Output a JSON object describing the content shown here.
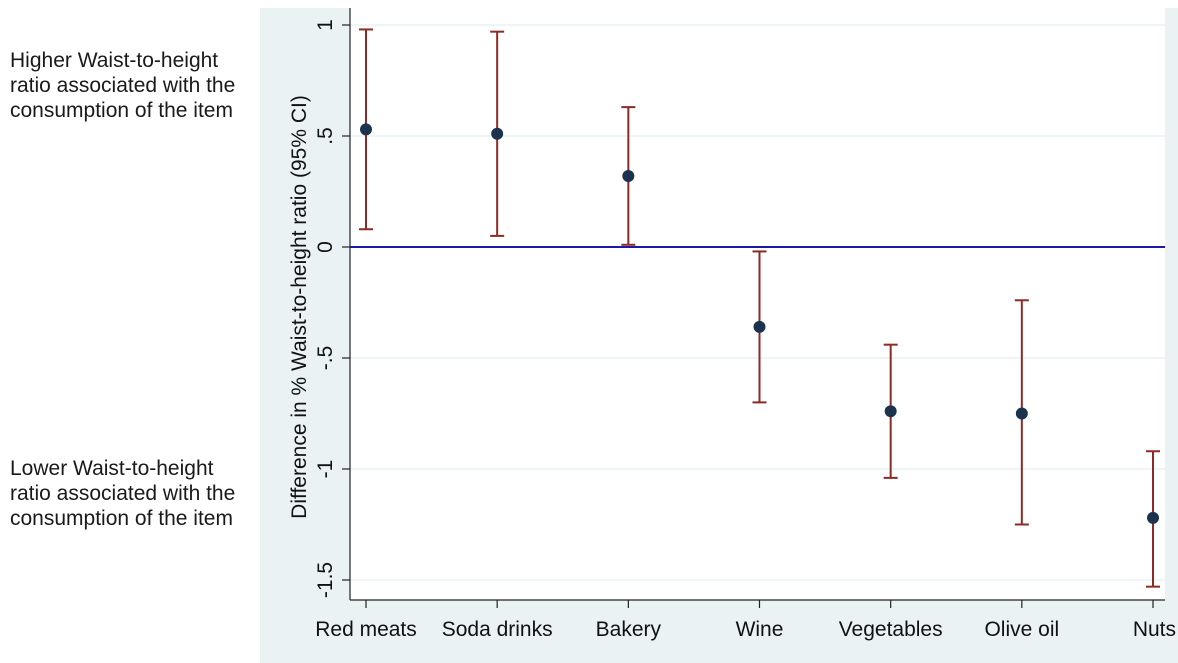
{
  "annotations": {
    "top_note": "Higher Waist-to-height ratio associated with the consumption of the item",
    "bottom_note": "Lower Waist-to-height ratio associated with the consumption of the item"
  },
  "colors": {
    "panel_background": "#eaf2f3",
    "plot_background": "#ffffff",
    "grid": "#eaf2f3",
    "reference_line": "#1a1aa6",
    "error_bar": "#8c2b25",
    "marker": "#1c3350"
  },
  "chart_data": {
    "type": "scatter",
    "subtype": "point estimates with 95% confidence interval error bars",
    "title": "",
    "xlabel": "",
    "ylabel": "Difference in % Waist-to-height ratio (95% CI)",
    "categories": [
      "Red meats",
      "Soda drinks",
      "Bakery",
      "Wine",
      "Vegetables",
      "Olive oil",
      "Nuts"
    ],
    "values": [
      0.53,
      0.51,
      0.32,
      -0.36,
      -0.74,
      -0.75,
      -1.22
    ],
    "ci_lower": [
      0.08,
      0.05,
      0.01,
      -0.7,
      -1.04,
      -1.25,
      -1.53
    ],
    "ci_upper": [
      0.98,
      0.97,
      0.63,
      -0.02,
      -0.44,
      -0.24,
      -0.92
    ],
    "y_ticks": [
      1,
      0.5,
      0,
      -0.5,
      -1,
      -1.5
    ],
    "y_tick_labels": [
      "1",
      ".5",
      "0",
      "-.5",
      "-1",
      "-1.5"
    ],
    "ylim": [
      -1.6,
      1.03
    ],
    "reference_line_y": 0,
    "grid": true,
    "legend": "none"
  }
}
